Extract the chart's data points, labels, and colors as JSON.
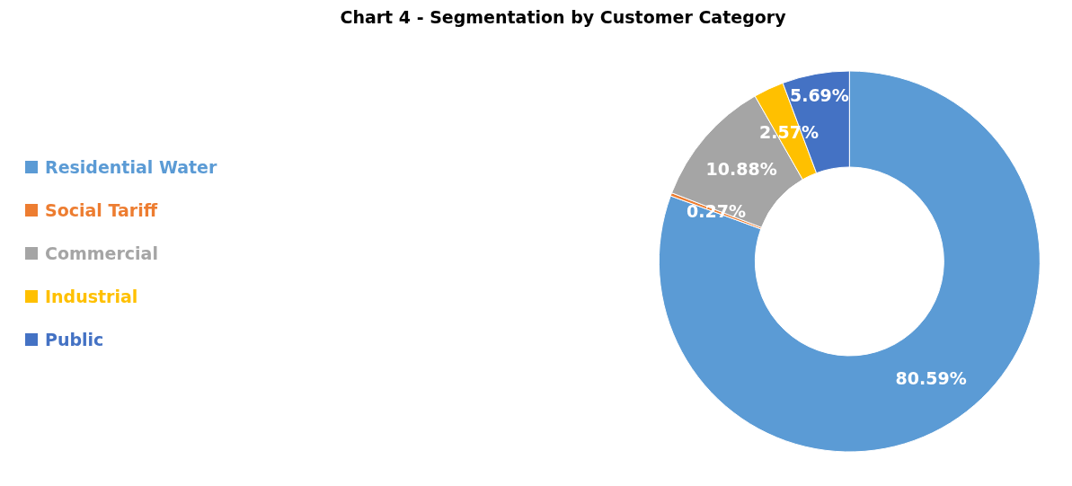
{
  "chart_data": {
    "type": "donut",
    "title": "Chart 4 - Segmentation by Customer Category",
    "categories": [
      "Residential Water",
      "Social Tariff",
      "Commercial",
      "Industrial",
      "Public"
    ],
    "values": [
      80.59,
      0.27,
      10.88,
      2.57,
      5.69
    ],
    "colors": [
      "#5b9bd5",
      "#ed7d31",
      "#a5a5a5",
      "#ffc000",
      "#4472c4"
    ],
    "value_labels": [
      "80.59%",
      "0.27%",
      "10.88%",
      "2.57%",
      "5.69%"
    ],
    "legend": "left"
  }
}
